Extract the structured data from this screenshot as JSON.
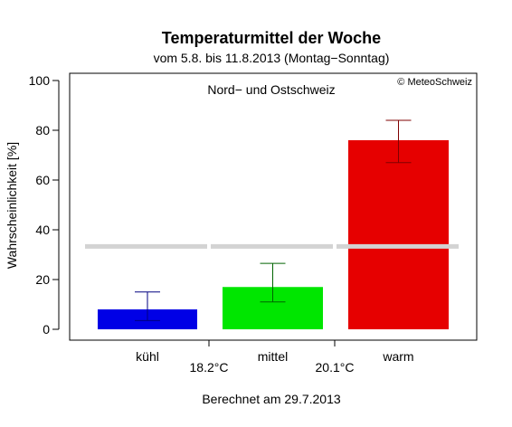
{
  "chart_data": {
    "type": "bar",
    "title": "Temperaturmittel der Woche",
    "subtitle": "vom 5.8. bis 11.8.2013 (Montag−Sonntag)",
    "region": "Nord− und Ostschweiz",
    "copyright": "© MeteoSchweiz",
    "ylabel": "Wahrscheinlichkeit [%]",
    "footer": "Berechnet am 29.7.2013",
    "ylim": [
      0,
      100
    ],
    "yticks": [
      0,
      20,
      40,
      60,
      80,
      100
    ],
    "categories": [
      "kühl",
      "mittel",
      "warm"
    ],
    "values": [
      8,
      17,
      76
    ],
    "error_low": [
      3.5,
      11,
      67
    ],
    "error_high": [
      15,
      26.5,
      84
    ],
    "colors": [
      "#0000e6",
      "#00e600",
      "#e60000"
    ],
    "error_colors": [
      "#000080",
      "#006400",
      "#800000"
    ],
    "reference_value": 33.3,
    "reference_color": "#d3d3d3",
    "thresholds": [
      "18.2°C",
      "20.1°C"
    ]
  }
}
